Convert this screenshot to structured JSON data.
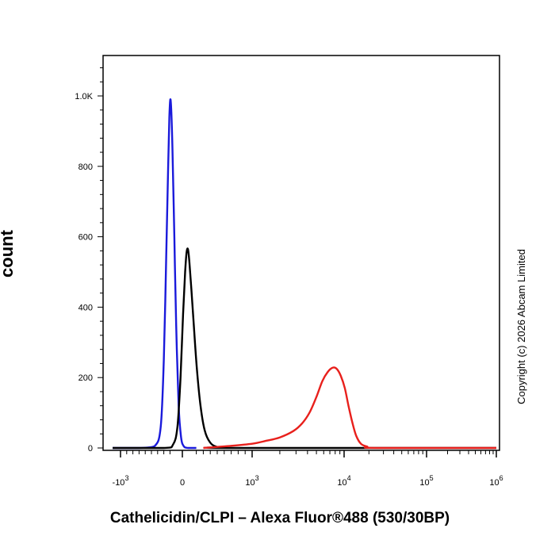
{
  "chart_data": {
    "type": "line",
    "title": "",
    "xlabel": "Cathelicidin/CLPI – Alexa Fluor®488 (530/30BP)",
    "ylabel": "count",
    "x_scale": "biexponential",
    "xlim": [
      -1500,
      1000000
    ],
    "ylim": [
      0,
      1100
    ],
    "grid": false,
    "legend": "none",
    "x_ticks": [
      {
        "value": -1000,
        "base": "-10",
        "exp": "3"
      },
      {
        "value": 0,
        "base": "0",
        "exp": ""
      },
      {
        "value": 1000,
        "base": "10",
        "exp": "3"
      },
      {
        "value": 10000,
        "base": "10",
        "exp": "4"
      },
      {
        "value": 100000,
        "base": "10",
        "exp": "5"
      },
      {
        "value": 1000000,
        "base": "10",
        "exp": "6"
      }
    ],
    "y_ticks": [
      {
        "value": 0,
        "label": "0"
      },
      {
        "value": 200,
        "label": "200"
      },
      {
        "value": 400,
        "label": "400"
      },
      {
        "value": 600,
        "label": "600"
      },
      {
        "value": 800,
        "label": "800"
      },
      {
        "value": 1000,
        "label": "1.0K"
      }
    ],
    "series": [
      {
        "color": "#1a1adb",
        "points": [
          [
            -1200,
            0
          ],
          [
            -700,
            0
          ],
          [
            -450,
            5
          ],
          [
            -350,
            60
          ],
          [
            -300,
            250
          ],
          [
            -260,
            550
          ],
          [
            -230,
            800
          ],
          [
            -210,
            940
          ],
          [
            -195,
            990
          ],
          [
            -180,
            960
          ],
          [
            -160,
            850
          ],
          [
            -130,
            600
          ],
          [
            -100,
            350
          ],
          [
            -60,
            120
          ],
          [
            -20,
            30
          ],
          [
            20,
            5
          ],
          [
            80,
            0
          ],
          [
            200,
            0
          ]
        ]
      },
      {
        "color": "#000000",
        "points": [
          [
            -1200,
            0
          ],
          [
            -300,
            0
          ],
          [
            -150,
            10
          ],
          [
            -80,
            60
          ],
          [
            -30,
            200
          ],
          [
            10,
            380
          ],
          [
            40,
            500
          ],
          [
            60,
            555
          ],
          [
            80,
            565
          ],
          [
            100,
            530
          ],
          [
            130,
            450
          ],
          [
            170,
            330
          ],
          [
            210,
            220
          ],
          [
            260,
            120
          ],
          [
            320,
            50
          ],
          [
            400,
            15
          ],
          [
            500,
            3
          ],
          [
            650,
            0
          ],
          [
            1000000,
            0
          ]
        ]
      },
      {
        "color": "#e8201c",
        "points": [
          [
            300,
            0
          ],
          [
            500,
            3
          ],
          [
            700,
            6
          ],
          [
            1000,
            12
          ],
          [
            1400,
            20
          ],
          [
            2000,
            30
          ],
          [
            2800,
            48
          ],
          [
            3500,
            70
          ],
          [
            4200,
            100
          ],
          [
            5000,
            145
          ],
          [
            5800,
            190
          ],
          [
            6600,
            215
          ],
          [
            7500,
            228
          ],
          [
            8300,
            225
          ],
          [
            9200,
            205
          ],
          [
            10200,
            170
          ],
          [
            11300,
            120
          ],
          [
            12500,
            75
          ],
          [
            14000,
            35
          ],
          [
            16000,
            12
          ],
          [
            19000,
            4
          ],
          [
            25000,
            0
          ],
          [
            1000000,
            0
          ]
        ]
      }
    ]
  },
  "watermark": "Copyright (c) 2026 Abcam Limited"
}
